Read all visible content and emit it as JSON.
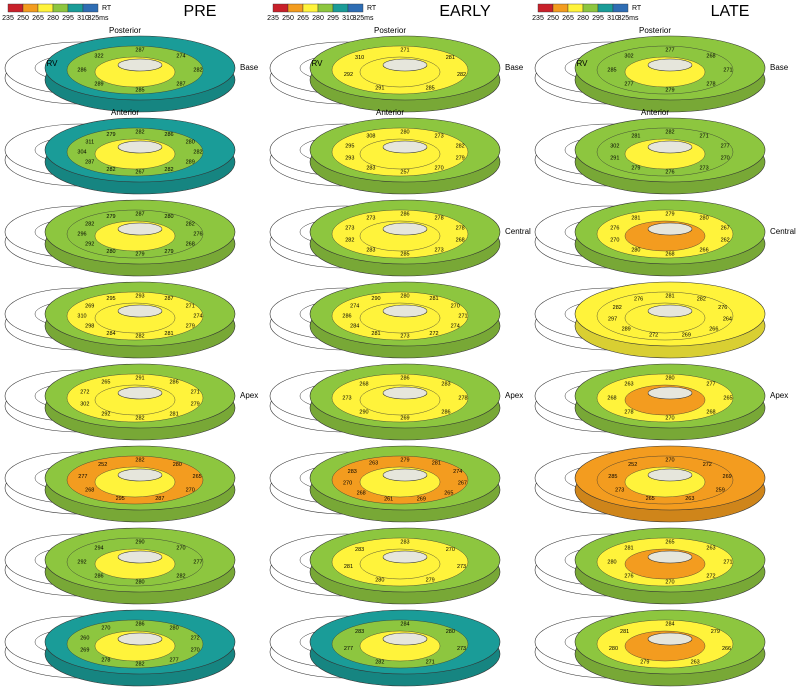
{
  "legend": {
    "title": "RT",
    "ticks": [
      "235",
      "250",
      "265",
      "280",
      "295",
      "310",
      "325ms"
    ],
    "colors": [
      "#c8202a",
      "#f39c1f",
      "#fff33b",
      "#8dc63f",
      "#1a9c98",
      "#2e6db4"
    ]
  },
  "columns": [
    {
      "title": "PRE",
      "slices": [
        {
          "top_label": "Posterior",
          "rv_label": "RV",
          "side_label": "Base",
          "colors": [
            "#1a9c98",
            "#8dc63f",
            "#fff33b"
          ],
          "labels": [
            "287",
            "274",
            "282",
            "287",
            "285",
            "289",
            "286",
            "322"
          ]
        },
        {
          "top_label": "Anterior",
          "colors": [
            "#1a9c98",
            "#8dc63f",
            "#fff33b"
          ],
          "labels": [
            "282",
            "286",
            "280",
            "282",
            "289",
            "282",
            "267",
            "282",
            "287",
            "304",
            "311",
            "279"
          ]
        },
        {
          "colors": [
            "#8dc63f",
            "#8dc63f",
            "#fff33b"
          ],
          "labels": [
            "287",
            "280",
            "282",
            "276",
            "268",
            "279",
            "279",
            "280",
            "292",
            "296",
            "282",
            "279"
          ]
        },
        {
          "colors": [
            "#8dc63f",
            "#fff33b",
            "#fff33b"
          ],
          "labels": [
            "293",
            "287",
            "271",
            "274",
            "279",
            "281",
            "282",
            "284",
            "298",
            "310",
            "269",
            "295"
          ]
        },
        {
          "side_label": "Apex",
          "colors": [
            "#8dc63f",
            "#fff33b",
            "#fff33b"
          ],
          "labels": [
            "291",
            "286",
            "271",
            "279",
            "281",
            "282",
            "292",
            "302",
            "272",
            "265"
          ]
        },
        {
          "colors": [
            "#8dc63f",
            "#f39c1f",
            "#fff33b"
          ],
          "labels": [
            "282",
            "280",
            "265",
            "270",
            "287",
            "295",
            "268",
            "277",
            "252"
          ]
        },
        {
          "colors": [
            "#8dc63f",
            "#8dc63f",
            "#fff33b"
          ],
          "labels": [
            "290",
            "270",
            "277",
            "282",
            "280",
            "286",
            "292",
            "294"
          ]
        },
        {
          "colors": [
            "#1a9c98",
            "#8dc63f",
            "#fff33b"
          ],
          "labels": [
            "286",
            "280",
            "272",
            "270",
            "277",
            "282",
            "278",
            "269",
            "260",
            "270"
          ]
        }
      ]
    },
    {
      "title": "EARLY",
      "slices": [
        {
          "top_label": "Posterior",
          "rv_label": "RV",
          "side_label": "Base",
          "colors": [
            "#8dc63f",
            "#fff33b",
            "#fff33b"
          ],
          "labels": [
            "271",
            "281",
            "282",
            "285",
            "291",
            "292",
            "310"
          ]
        },
        {
          "top_label": "Anterior",
          "colors": [
            "#8dc63f",
            "#fff33b",
            "#fff33b"
          ],
          "labels": [
            "280",
            "273",
            "282",
            "279",
            "270",
            "257",
            "283",
            "293",
            "295",
            "308"
          ]
        },
        {
          "side_label": "Central",
          "colors": [
            "#8dc63f",
            "#fff33b",
            "#fff33b"
          ],
          "labels": [
            "286",
            "278",
            "278",
            "268",
            "273",
            "285",
            "283",
            "282",
            "273",
            "273"
          ]
        },
        {
          "colors": [
            "#8dc63f",
            "#fff33b",
            "#fff33b"
          ],
          "labels": [
            "280",
            "281",
            "270",
            "271",
            "274",
            "272",
            "273",
            "281",
            "284",
            "286",
            "274",
            "290"
          ]
        },
        {
          "side_label": "Apex",
          "colors": [
            "#8dc63f",
            "#fff33b",
            "#fff33b"
          ],
          "labels": [
            "286",
            "283",
            "278",
            "286",
            "269",
            "290",
            "273",
            "268"
          ]
        },
        {
          "colors": [
            "#8dc63f",
            "#f39c1f",
            "#fff33b"
          ],
          "labels": [
            "279",
            "281",
            "274",
            "267",
            "265",
            "269",
            "261",
            "268",
            "270",
            "283",
            "263"
          ]
        },
        {
          "colors": [
            "#8dc63f",
            "#fff33b",
            "#fff33b"
          ],
          "labels": [
            "283",
            "270",
            "273",
            "279",
            "280",
            "281",
            "283"
          ]
        },
        {
          "colors": [
            "#1a9c98",
            "#8dc63f",
            "#fff33b"
          ],
          "labels": [
            "284",
            "280",
            "273",
            "271",
            "282",
            "277",
            "283"
          ]
        }
      ]
    },
    {
      "title": "LATE",
      "slices": [
        {
          "top_label": "Posterior",
          "rv_label": "RV",
          "side_label": "Base",
          "colors": [
            "#8dc63f",
            "#8dc63f",
            "#fff33b"
          ],
          "labels": [
            "277",
            "268",
            "271",
            "278",
            "279",
            "277",
            "285",
            "302"
          ]
        },
        {
          "top_label": "Anterior",
          "colors": [
            "#8dc63f",
            "#8dc63f",
            "#fff33b"
          ],
          "labels": [
            "282",
            "271",
            "277",
            "270",
            "273",
            "276",
            "279",
            "291",
            "302",
            "281"
          ]
        },
        {
          "side_label": "Central",
          "colors": [
            "#8dc63f",
            "#fff33b",
            "#f39c1f"
          ],
          "labels": [
            "279",
            "280",
            "267",
            "262",
            "266",
            "268",
            "280",
            "270",
            "276",
            "281"
          ]
        },
        {
          "colors": [
            "#fff33b",
            "#fff33b",
            "#fff33b"
          ],
          "labels": [
            "281",
            "282",
            "276",
            "264",
            "266",
            "269",
            "272",
            "289",
            "297",
            "282",
            "276"
          ]
        },
        {
          "side_label": "Apex",
          "colors": [
            "#8dc63f",
            "#fff33b",
            "#f39c1f"
          ],
          "labels": [
            "280",
            "277",
            "265",
            "268",
            "270",
            "278",
            "268",
            "263"
          ]
        },
        {
          "colors": [
            "#f39c1f",
            "#f39c1f",
            "#fff33b"
          ],
          "labels": [
            "270",
            "272",
            "269",
            "259",
            "263",
            "265",
            "273",
            "285",
            "252"
          ]
        },
        {
          "colors": [
            "#8dc63f",
            "#fff33b",
            "#f39c1f"
          ],
          "labels": [
            "265",
            "263",
            "271",
            "272",
            "270",
            "276",
            "280",
            "281"
          ]
        },
        {
          "colors": [
            "#8dc63f",
            "#fff33b",
            "#f39c1f"
          ],
          "labels": [
            "284",
            "279",
            "266",
            "263",
            "279",
            "280",
            "281"
          ]
        }
      ]
    }
  ]
}
